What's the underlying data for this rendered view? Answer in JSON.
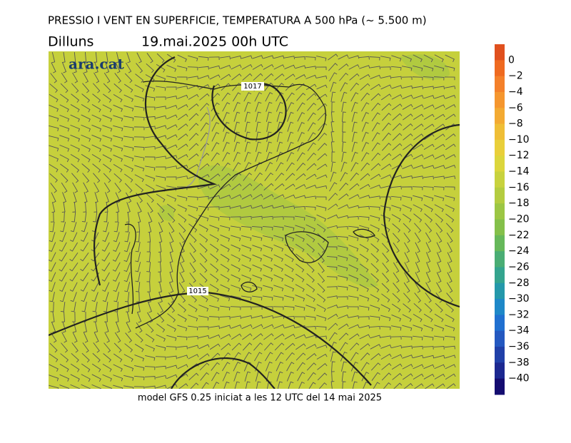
{
  "header": {
    "title": "PRESSIO I VENT EN SUPERFICIE, TEMPERATURA A 500 hPa (~ 5.500 m)",
    "day": "Dilluns",
    "date": "19.mai.2025 00h UTC"
  },
  "map": {
    "logo": "ara.cat",
    "isobar_labels": [
      "1017",
      "1015"
    ]
  },
  "colorbar": {
    "labels": [
      "0",
      "−2",
      "−4",
      "−6",
      "−8",
      "−10",
      "−12",
      "−14",
      "−16",
      "−18",
      "−20",
      "−22",
      "−24",
      "−26",
      "−28",
      "−30",
      "−32",
      "−34",
      "−36",
      "−38",
      "−40"
    ],
    "colors": [
      "#e0501e",
      "#ef6a20",
      "#f4802a",
      "#f5962e",
      "#f3aa32",
      "#efbe36",
      "#e9cf3a",
      "#dcd63c",
      "#c8d23e",
      "#b4cc40",
      "#9cc644",
      "#84c04a",
      "#66b85a",
      "#4aad74",
      "#34a48e",
      "#2498aa",
      "#1e88c8",
      "#2070d0",
      "#2458c0",
      "#2040a8",
      "#1c2890",
      "#140c70"
    ]
  },
  "footer": {
    "note": "model GFS 0.25 iniciat a les 12 UTC del 14 mai 2025"
  }
}
